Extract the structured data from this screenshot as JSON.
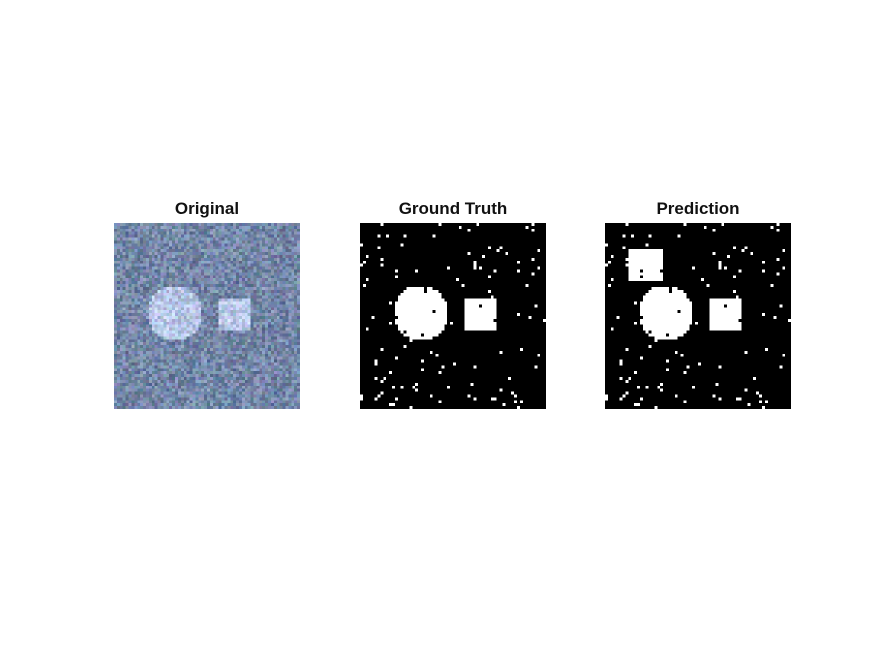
{
  "panels": [
    {
      "id": "original",
      "title": "Original"
    },
    {
      "id": "truth",
      "title": "Ground Truth"
    },
    {
      "id": "prediction",
      "title": "Prediction"
    }
  ],
  "colors": {
    "background": "#ffffff",
    "original_noise_base": "#7487a8",
    "original_shapes": "#b9c7e8",
    "mask_background": "#000000",
    "mask_foreground": "#ffffff"
  }
}
